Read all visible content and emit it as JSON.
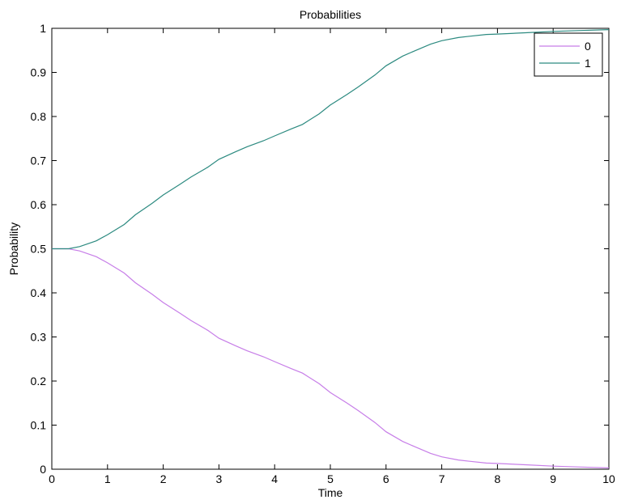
{
  "chart_data": {
    "type": "line",
    "title": "Probabilities",
    "xlabel": "Time",
    "ylabel": "Probability",
    "xlim": [
      0,
      10
    ],
    "ylim": [
      0,
      1
    ],
    "xticks": [
      0,
      1,
      2,
      3,
      4,
      5,
      6,
      7,
      8,
      9,
      10
    ],
    "yticks": [
      0,
      0.1,
      0.2,
      0.3,
      0.4,
      0.5,
      0.6,
      0.7,
      0.8,
      0.9,
      1
    ],
    "grid": false,
    "legend_position": "top-right",
    "x": [
      0,
      0.3,
      0.5,
      0.8,
      1.0,
      1.3,
      1.5,
      1.8,
      2.0,
      2.3,
      2.5,
      2.8,
      3.0,
      3.3,
      3.5,
      3.8,
      4.0,
      4.3,
      4.5,
      4.8,
      5.0,
      5.3,
      5.5,
      5.8,
      6.0,
      6.3,
      6.5,
      6.8,
      7.0,
      7.3,
      7.5,
      7.8,
      8.0,
      8.5,
      9.0,
      9.5,
      10.0
    ],
    "series": [
      {
        "name": "0",
        "color": "#c77ee8",
        "values": [
          0.5,
          0.5,
          0.495,
          0.482,
          0.468,
          0.445,
          0.423,
          0.397,
          0.378,
          0.354,
          0.337,
          0.315,
          0.297,
          0.28,
          0.269,
          0.255,
          0.244,
          0.228,
          0.218,
          0.194,
          0.174,
          0.15,
          0.133,
          0.106,
          0.085,
          0.063,
          0.052,
          0.036,
          0.028,
          0.021,
          0.018,
          0.014,
          0.013,
          0.01,
          0.007,
          0.005,
          0.003
        ]
      },
      {
        "name": "1",
        "color": "#2c8a80",
        "values": [
          0.5,
          0.5,
          0.505,
          0.518,
          0.532,
          0.555,
          0.577,
          0.603,
          0.622,
          0.646,
          0.663,
          0.685,
          0.703,
          0.72,
          0.731,
          0.745,
          0.756,
          0.772,
          0.782,
          0.806,
          0.826,
          0.85,
          0.867,
          0.894,
          0.915,
          0.937,
          0.948,
          0.964,
          0.972,
          0.979,
          0.982,
          0.986,
          0.987,
          0.99,
          0.993,
          0.995,
          0.997
        ]
      }
    ]
  }
}
